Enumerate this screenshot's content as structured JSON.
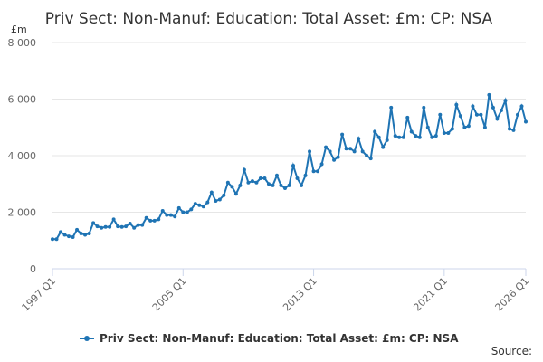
{
  "chart_data": {
    "type": "line",
    "title": "Priv Sect: Non-Manuf: Education: Total Asset: £m: CP: NSA",
    "y_label": "£m",
    "source": "Source:",
    "categories": [
      "1997 Q1",
      null,
      null,
      null,
      null,
      null,
      null,
      null,
      null,
      null,
      null,
      null,
      null,
      null,
      null,
      null,
      null,
      null,
      null,
      null,
      null,
      null,
      null,
      null,
      null,
      null,
      null,
      null,
      null,
      null,
      null,
      null,
      "2005 Q1",
      null,
      null,
      null,
      null,
      null,
      null,
      null,
      null,
      null,
      null,
      null,
      null,
      null,
      null,
      null,
      null,
      null,
      null,
      null,
      null,
      null,
      null,
      null,
      null,
      null,
      null,
      null,
      null,
      null,
      null,
      null,
      "2013 Q1",
      null,
      null,
      null,
      null,
      null,
      null,
      null,
      null,
      null,
      null,
      null,
      null,
      null,
      null,
      null,
      null,
      null,
      null,
      null,
      null,
      null,
      null,
      null,
      null,
      null,
      null,
      null,
      null,
      null,
      null,
      null,
      "2021 Q1",
      null,
      null,
      null,
      null,
      null,
      null,
      null,
      null,
      null,
      null,
      null,
      null,
      null,
      null,
      null,
      null,
      null,
      null,
      null,
      "2026 Q1"
    ],
    "series": [
      {
        "name": "Priv Sect: Non-Manuf: Education: Total Asset: £m: CP: NSA",
        "color": "#1f74b4",
        "values": [
          1050,
          1050,
          1300,
          1200,
          1150,
          1120,
          1380,
          1250,
          1200,
          1250,
          1620,
          1500,
          1450,
          1480,
          1480,
          1750,
          1500,
          1480,
          1500,
          1600,
          1450,
          1550,
          1550,
          1800,
          1700,
          1700,
          1750,
          2050,
          1900,
          1900,
          1850,
          2150,
          2000,
          2000,
          2100,
          2300,
          2250,
          2200,
          2350,
          2700,
          2400,
          2450,
          2600,
          3050,
          2900,
          2650,
          2950,
          3500,
          3050,
          3100,
          3050,
          3200,
          3200,
          3000,
          2950,
          3300,
          2950,
          2850,
          2950,
          3650,
          3200,
          2950,
          3300,
          4150,
          3450,
          3450,
          3700,
          4300,
          4150,
          3850,
          3950,
          4750,
          4250,
          4250,
          4150,
          4600,
          4150,
          4000,
          3900,
          4850,
          4650,
          4300,
          4550,
          5700,
          4700,
          4650,
          4650,
          5350,
          4850,
          4700,
          4650,
          5700,
          5000,
          4650,
          4700,
          5450,
          4800,
          4800,
          4950,
          5800,
          5400,
          5000,
          5050,
          5750,
          5450,
          5450,
          5000,
          6150,
          5700,
          5300,
          5600,
          5950,
          4950,
          4900,
          5450,
          5750,
          5200
        ]
      }
    ],
    "ylim": [
      0,
      8000
    ],
    "yticks": [
      0,
      {
        "value": 2000,
        "label": "2 000"
      },
      {
        "value": 4000,
        "label": "4 000"
      },
      {
        "value": 6000,
        "label": "6 000"
      },
      {
        "value": 8000,
        "label": "8 000"
      }
    ],
    "grid": true
  }
}
